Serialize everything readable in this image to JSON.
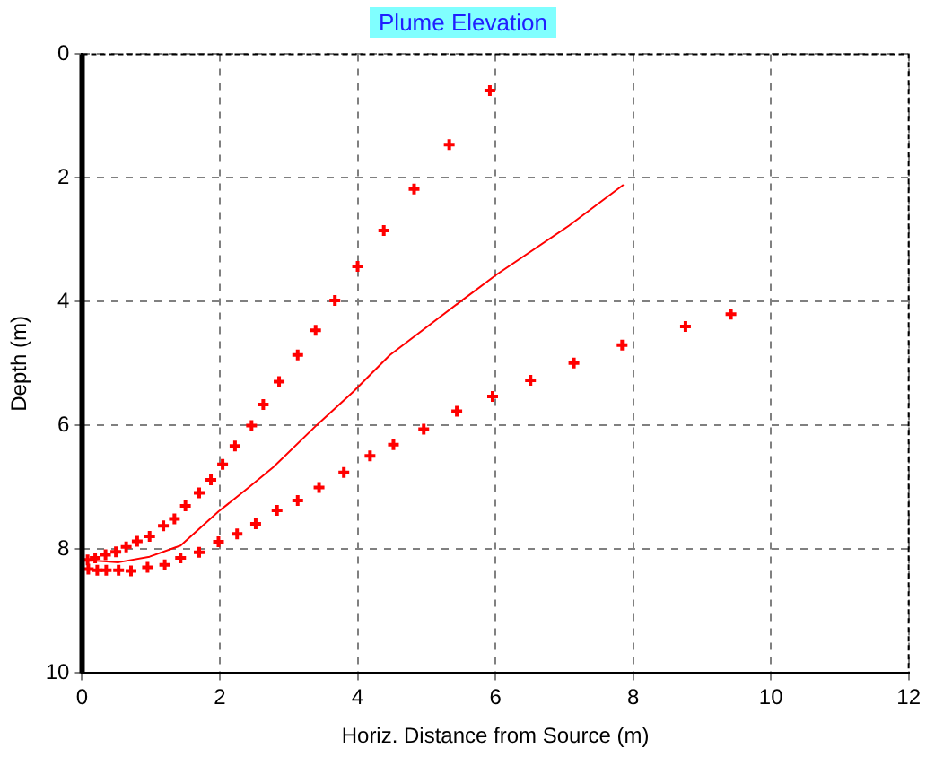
{
  "chart_data": {
    "type": "scatter",
    "title": "Plume Elevation",
    "xlabel": "Horiz. Distance from Source (m)",
    "ylabel": "Depth (m)",
    "xlim": [
      0,
      12
    ],
    "xticks": [
      0,
      2,
      4,
      6,
      8,
      10,
      12
    ],
    "ylim": [
      10,
      0
    ],
    "yticks": [
      0,
      2,
      4,
      6,
      8,
      10
    ],
    "grid": true,
    "marker": "cross",
    "series": [
      {
        "color": "#ff0000",
        "x": [
          0.08,
          0.19,
          0.34,
          0.49,
          0.64,
          0.8,
          0.98,
          1.18,
          1.34,
          1.5,
          1.7,
          1.87,
          2.04,
          2.22,
          2.46,
          2.63,
          2.86,
          3.13,
          3.39,
          3.67,
          4.0,
          4.38,
          4.82,
          5.33,
          5.92
        ],
        "values": [
          8.17,
          8.14,
          8.09,
          8.04,
          7.96,
          7.87,
          7.79,
          7.62,
          7.51,
          7.3,
          7.09,
          6.88,
          6.63,
          6.33,
          6.0,
          5.66,
          5.29,
          4.86,
          4.46,
          3.98,
          3.43,
          2.85,
          2.18,
          1.46,
          0.59
        ]
      },
      {
        "type": "line",
        "color": "#ff0000",
        "marker": "none",
        "x": [
          0.04,
          0.53,
          0.98,
          1.43,
          1.98,
          2.41,
          2.77,
          3.4,
          3.94,
          4.47,
          5.49,
          6.02,
          7.07,
          7.86
        ],
        "values": [
          8.17,
          8.21,
          8.12,
          7.94,
          7.39,
          7.01,
          6.68,
          6.0,
          5.45,
          4.86,
          4.0,
          3.56,
          2.77,
          2.11
        ]
      },
      {
        "color": "#ff0000",
        "x": [
          0.09,
          0.22,
          0.35,
          0.53,
          0.71,
          0.95,
          1.2,
          1.43,
          1.7,
          1.98,
          2.25,
          2.52,
          2.83,
          3.13,
          3.44,
          3.8,
          4.18,
          4.52,
          4.96,
          5.44,
          5.96,
          6.51,
          7.14,
          7.84,
          8.76,
          9.42
        ],
        "values": [
          8.32,
          8.34,
          8.34,
          8.34,
          8.35,
          8.29,
          8.25,
          8.14,
          8.05,
          7.88,
          7.75,
          7.59,
          7.37,
          7.21,
          7.0,
          6.76,
          6.49,
          6.31,
          6.06,
          5.77,
          5.53,
          5.27,
          4.99,
          4.7,
          4.4,
          4.2
        ]
      }
    ]
  }
}
